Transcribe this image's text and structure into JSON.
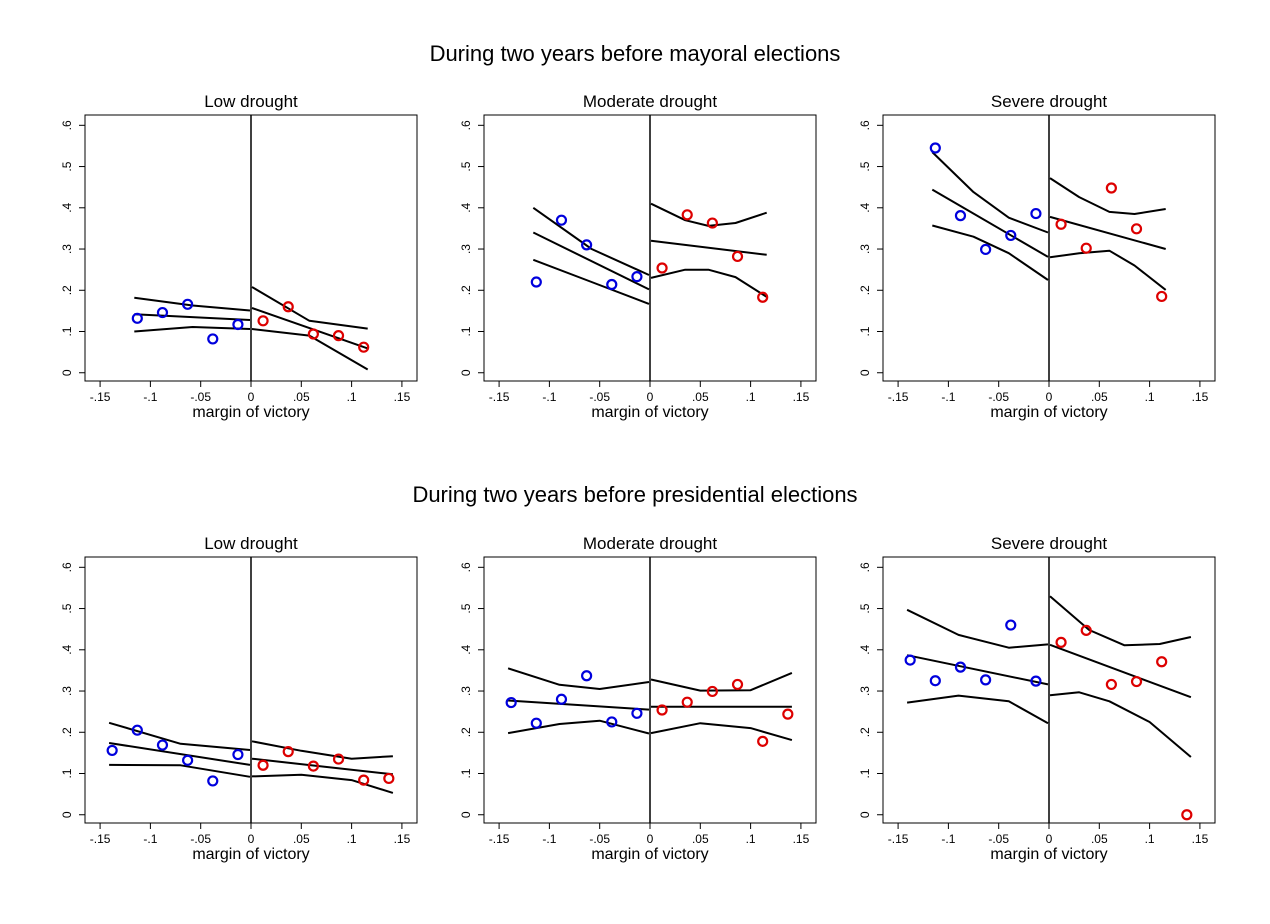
{
  "figure": {
    "row_titles": [
      "During two years before mayoral elections",
      "During two years before presidential elections"
    ]
  },
  "colors": {
    "left_points": "#0000dd",
    "right_points": "#dd0000",
    "lines": "#000000",
    "frame": "#000000"
  },
  "chart_data": [
    {
      "type": "scatter",
      "title": "Low drought",
      "xlabel": "margin of victory",
      "ylabel": "",
      "xlim": [
        -0.165,
        0.165
      ],
      "ylim": [
        -0.02,
        0.625
      ],
      "xticks": [
        -0.15,
        -0.1,
        -0.05,
        0,
        0.05,
        0.1,
        0.15
      ],
      "xtick_labels": [
        "-.15",
        "-.1",
        "-.05",
        "0",
        ".05",
        ".1",
        ".15"
      ],
      "yticks": [
        0,
        0.1,
        0.2,
        0.3,
        0.4,
        0.5,
        0.6
      ],
      "ytick_labels": [
        "0",
        ".1",
        ".2",
        ".3",
        ".4",
        ".5",
        ".6"
      ],
      "cutoff": 0,
      "series": [
        {
          "side": "left",
          "x": [
            -0.113,
            -0.088,
            -0.063,
            -0.038,
            -0.013
          ],
          "y": [
            0.132,
            0.146,
            0.166,
            0.082,
            0.117
          ]
        },
        {
          "side": "right",
          "x": [
            0.012,
            0.037,
            0.062,
            0.087,
            0.112
          ],
          "y": [
            0.126,
            0.16,
            0.094,
            0.09,
            0.062
          ]
        }
      ],
      "fits": [
        {
          "kind": "fit",
          "x": [
            -0.116,
            -0.001
          ],
          "y": [
            0.142,
            0.128
          ]
        },
        {
          "kind": "ci_upper",
          "x": [
            -0.116,
            -0.058,
            -0.001
          ],
          "y": [
            0.182,
            0.163,
            0.151
          ]
        },
        {
          "kind": "ci_lower",
          "x": [
            -0.116,
            -0.058,
            -0.001
          ],
          "y": [
            0.1,
            0.111,
            0.106
          ]
        },
        {
          "kind": "fit",
          "x": [
            0.001,
            0.116
          ],
          "y": [
            0.157,
            0.059
          ]
        },
        {
          "kind": "ci_upper",
          "x": [
            0.001,
            0.058,
            0.116
          ],
          "y": [
            0.208,
            0.126,
            0.107
          ]
        },
        {
          "kind": "ci_lower",
          "x": [
            0.001,
            0.058,
            0.116
          ],
          "y": [
            0.106,
            0.09,
            0.008
          ]
        }
      ]
    },
    {
      "type": "scatter",
      "title": "Moderate drought",
      "xlabel": "margin of victory",
      "ylabel": "",
      "xlim": [
        -0.165,
        0.165
      ],
      "ylim": [
        -0.02,
        0.625
      ],
      "xticks": [
        -0.15,
        -0.1,
        -0.05,
        0,
        0.05,
        0.1,
        0.15
      ],
      "xtick_labels": [
        "-.15",
        "-.1",
        "-.05",
        "0",
        ".05",
        ".1",
        ".15"
      ],
      "yticks": [
        0,
        0.1,
        0.2,
        0.3,
        0.4,
        0.5,
        0.6
      ],
      "ytick_labels": [
        "0",
        ".1",
        ".2",
        ".3",
        ".4",
        ".5",
        ".6"
      ],
      "cutoff": 0,
      "series": [
        {
          "side": "left",
          "x": [
            -0.113,
            -0.088,
            -0.063,
            -0.038,
            -0.013
          ],
          "y": [
            0.22,
            0.37,
            0.31,
            0.214,
            0.233
          ]
        },
        {
          "side": "right",
          "x": [
            0.012,
            0.037,
            0.062,
            0.087,
            0.112
          ],
          "y": [
            0.254,
            0.383,
            0.363,
            0.282,
            0.183
          ]
        }
      ],
      "fits": [
        {
          "kind": "fit",
          "x": [
            -0.116,
            -0.001
          ],
          "y": [
            0.34,
            0.202
          ]
        },
        {
          "kind": "ci_upper",
          "x": [
            -0.116,
            -0.058,
            -0.001
          ],
          "y": [
            0.4,
            0.3,
            0.237
          ]
        },
        {
          "kind": "ci_lower",
          "x": [
            -0.116,
            -0.058,
            -0.001
          ],
          "y": [
            0.274,
            0.22,
            0.167
          ]
        },
        {
          "kind": "fit",
          "x": [
            0.001,
            0.116
          ],
          "y": [
            0.32,
            0.286
          ]
        },
        {
          "kind": "ci_upper",
          "x": [
            0.001,
            0.035,
            0.058,
            0.085,
            0.116
          ],
          "y": [
            0.41,
            0.37,
            0.356,
            0.363,
            0.388
          ]
        },
        {
          "kind": "ci_lower",
          "x": [
            0.001,
            0.035,
            0.058,
            0.085,
            0.116
          ],
          "y": [
            0.23,
            0.25,
            0.25,
            0.232,
            0.184
          ]
        }
      ]
    },
    {
      "type": "scatter",
      "title": "Severe drought",
      "xlabel": "margin of victory",
      "ylabel": "",
      "xlim": [
        -0.165,
        0.165
      ],
      "ylim": [
        -0.02,
        0.625
      ],
      "xticks": [
        -0.15,
        -0.1,
        -0.05,
        0,
        0.05,
        0.1,
        0.15
      ],
      "xtick_labels": [
        "-.15",
        "-.1",
        "-.05",
        "0",
        ".05",
        ".1",
        ".15"
      ],
      "yticks": [
        0,
        0.1,
        0.2,
        0.3,
        0.4,
        0.5,
        0.6
      ],
      "ytick_labels": [
        "0",
        ".1",
        ".2",
        ".3",
        ".4",
        ".5",
        ".6"
      ],
      "cutoff": 0,
      "series": [
        {
          "side": "left",
          "x": [
            -0.113,
            -0.088,
            -0.063,
            -0.038,
            -0.013
          ],
          "y": [
            0.545,
            0.381,
            0.299,
            0.333,
            0.386
          ]
        },
        {
          "side": "right",
          "x": [
            0.012,
            0.037,
            0.062,
            0.087,
            0.112
          ],
          "y": [
            0.36,
            0.302,
            0.448,
            0.349,
            0.185
          ]
        }
      ],
      "fits": [
        {
          "kind": "fit",
          "x": [
            -0.116,
            -0.001
          ],
          "y": [
            0.444,
            0.281
          ]
        },
        {
          "kind": "ci_upper",
          "x": [
            -0.116,
            -0.075,
            -0.04,
            -0.001
          ],
          "y": [
            0.535,
            0.438,
            0.376,
            0.34
          ]
        },
        {
          "kind": "ci_lower",
          "x": [
            -0.116,
            -0.075,
            -0.04,
            -0.001
          ],
          "y": [
            0.357,
            0.33,
            0.29,
            0.225
          ]
        },
        {
          "kind": "fit",
          "x": [
            0.001,
            0.116
          ],
          "y": [
            0.378,
            0.3
          ]
        },
        {
          "kind": "ci_upper",
          "x": [
            0.001,
            0.03,
            0.06,
            0.085,
            0.116
          ],
          "y": [
            0.472,
            0.426,
            0.39,
            0.385,
            0.397
          ]
        },
        {
          "kind": "ci_lower",
          "x": [
            0.001,
            0.03,
            0.06,
            0.085,
            0.116
          ],
          "y": [
            0.28,
            0.29,
            0.296,
            0.26,
            0.201
          ]
        }
      ]
    },
    {
      "type": "scatter",
      "title": "Low drought",
      "xlabel": "margin of victory",
      "ylabel": "",
      "xlim": [
        -0.165,
        0.165
      ],
      "ylim": [
        -0.02,
        0.625
      ],
      "xticks": [
        -0.15,
        -0.1,
        -0.05,
        0,
        0.05,
        0.1,
        0.15
      ],
      "xtick_labels": [
        "-.15",
        "-.1",
        "-.05",
        "0",
        ".05",
        ".1",
        ".15"
      ],
      "yticks": [
        0,
        0.1,
        0.2,
        0.3,
        0.4,
        0.5,
        0.6
      ],
      "ytick_labels": [
        "0",
        ".1",
        ".2",
        ".3",
        ".4",
        ".5",
        ".6"
      ],
      "cutoff": 0,
      "series": [
        {
          "side": "left",
          "x": [
            -0.138,
            -0.113,
            -0.088,
            -0.063,
            -0.038,
            -0.013
          ],
          "y": [
            0.156,
            0.205,
            0.169,
            0.132,
            0.082,
            0.146
          ]
        },
        {
          "side": "right",
          "x": [
            0.012,
            0.037,
            0.062,
            0.087,
            0.112,
            0.137
          ],
          "y": [
            0.12,
            0.153,
            0.118,
            0.135,
            0.084,
            0.088
          ]
        }
      ],
      "fits": [
        {
          "kind": "fit",
          "x": [
            -0.141,
            -0.001
          ],
          "y": [
            0.174,
            0.121
          ]
        },
        {
          "kind": "ci_upper",
          "x": [
            -0.141,
            -0.07,
            -0.001
          ],
          "y": [
            0.223,
            0.172,
            0.157
          ]
        },
        {
          "kind": "ci_lower",
          "x": [
            -0.141,
            -0.07,
            -0.001
          ],
          "y": [
            0.121,
            0.12,
            0.092
          ]
        },
        {
          "kind": "fit",
          "x": [
            0.001,
            0.141
          ],
          "y": [
            0.136,
            0.098
          ]
        },
        {
          "kind": "ci_upper",
          "x": [
            0.001,
            0.05,
            0.1,
            0.141
          ],
          "y": [
            0.178,
            0.155,
            0.136,
            0.142
          ]
        },
        {
          "kind": "ci_lower",
          "x": [
            0.001,
            0.05,
            0.1,
            0.141
          ],
          "y": [
            0.093,
            0.097,
            0.084,
            0.053
          ]
        }
      ]
    },
    {
      "type": "scatter",
      "title": "Moderate drought",
      "xlabel": "margin of victory",
      "ylabel": "",
      "xlim": [
        -0.165,
        0.165
      ],
      "ylim": [
        -0.02,
        0.625
      ],
      "xticks": [
        -0.15,
        -0.1,
        -0.05,
        0,
        0.05,
        0.1,
        0.15
      ],
      "xtick_labels": [
        "-.15",
        "-.1",
        "-.05",
        "0",
        ".05",
        ".1",
        ".15"
      ],
      "yticks": [
        0,
        0.1,
        0.2,
        0.3,
        0.4,
        0.5,
        0.6
      ],
      "ytick_labels": [
        "0",
        ".1",
        ".2",
        ".3",
        ".4",
        ".5",
        ".6"
      ],
      "cutoff": 0,
      "series": [
        {
          "side": "left",
          "x": [
            -0.138,
            -0.113,
            -0.088,
            -0.063,
            -0.038,
            -0.013
          ],
          "y": [
            0.272,
            0.222,
            0.28,
            0.337,
            0.225,
            0.246
          ]
        },
        {
          "side": "right",
          "x": [
            0.012,
            0.037,
            0.062,
            0.087,
            0.112,
            0.137
          ],
          "y": [
            0.254,
            0.273,
            0.299,
            0.316,
            0.178,
            0.244
          ]
        }
      ],
      "fits": [
        {
          "kind": "fit",
          "x": [
            -0.141,
            -0.001
          ],
          "y": [
            0.277,
            0.255
          ]
        },
        {
          "kind": "ci_upper",
          "x": [
            -0.141,
            -0.09,
            -0.05,
            -0.001
          ],
          "y": [
            0.355,
            0.315,
            0.305,
            0.322
          ]
        },
        {
          "kind": "ci_lower",
          "x": [
            -0.141,
            -0.09,
            -0.05,
            -0.001
          ],
          "y": [
            0.198,
            0.22,
            0.228,
            0.197
          ]
        },
        {
          "kind": "fit",
          "x": [
            0.001,
            0.141
          ],
          "y": [
            0.262,
            0.262
          ]
        },
        {
          "kind": "ci_upper",
          "x": [
            0.001,
            0.05,
            0.1,
            0.141
          ],
          "y": [
            0.328,
            0.301,
            0.302,
            0.344
          ]
        },
        {
          "kind": "ci_lower",
          "x": [
            0.001,
            0.05,
            0.1,
            0.141
          ],
          "y": [
            0.198,
            0.222,
            0.21,
            0.181
          ]
        }
      ]
    },
    {
      "type": "scatter",
      "title": "Severe drought",
      "xlabel": "margin of victory",
      "ylabel": "",
      "xlim": [
        -0.165,
        0.165
      ],
      "ylim": [
        -0.02,
        0.625
      ],
      "xticks": [
        -0.15,
        -0.1,
        -0.05,
        0,
        0.05,
        0.1,
        0.15
      ],
      "xtick_labels": [
        "-.15",
        "-.1",
        "-.05",
        "0",
        ".05",
        ".1",
        ".15"
      ],
      "yticks": [
        0,
        0.1,
        0.2,
        0.3,
        0.4,
        0.5,
        0.6
      ],
      "ytick_labels": [
        "0",
        ".1",
        ".2",
        ".3",
        ".4",
        ".5",
        ".6"
      ],
      "cutoff": 0,
      "series": [
        {
          "side": "left",
          "x": [
            -0.138,
            -0.113,
            -0.088,
            -0.063,
            -0.038,
            -0.013
          ],
          "y": [
            0.375,
            0.325,
            0.358,
            0.327,
            0.46,
            0.324
          ]
        },
        {
          "side": "right",
          "x": [
            0.012,
            0.037,
            0.062,
            0.087,
            0.112,
            0.137
          ],
          "y": [
            0.418,
            0.447,
            0.316,
            0.323,
            0.371,
            0.0
          ]
        }
      ],
      "fits": [
        {
          "kind": "fit",
          "x": [
            -0.141,
            -0.001
          ],
          "y": [
            0.387,
            0.316
          ]
        },
        {
          "kind": "ci_upper",
          "x": [
            -0.141,
            -0.09,
            -0.04,
            -0.001
          ],
          "y": [
            0.497,
            0.436,
            0.405,
            0.413
          ]
        },
        {
          "kind": "ci_lower",
          "x": [
            -0.141,
            -0.09,
            -0.04,
            -0.001
          ],
          "y": [
            0.272,
            0.289,
            0.275,
            0.222
          ]
        },
        {
          "kind": "fit",
          "x": [
            0.001,
            0.141
          ],
          "y": [
            0.412,
            0.285
          ]
        },
        {
          "kind": "ci_upper",
          "x": [
            0.001,
            0.04,
            0.075,
            0.11,
            0.141
          ],
          "y": [
            0.53,
            0.448,
            0.411,
            0.414,
            0.431
          ]
        },
        {
          "kind": "ci_lower",
          "x": [
            0.001,
            0.03,
            0.06,
            0.1,
            0.141
          ],
          "y": [
            0.29,
            0.297,
            0.275,
            0.225,
            0.14
          ]
        }
      ]
    }
  ]
}
